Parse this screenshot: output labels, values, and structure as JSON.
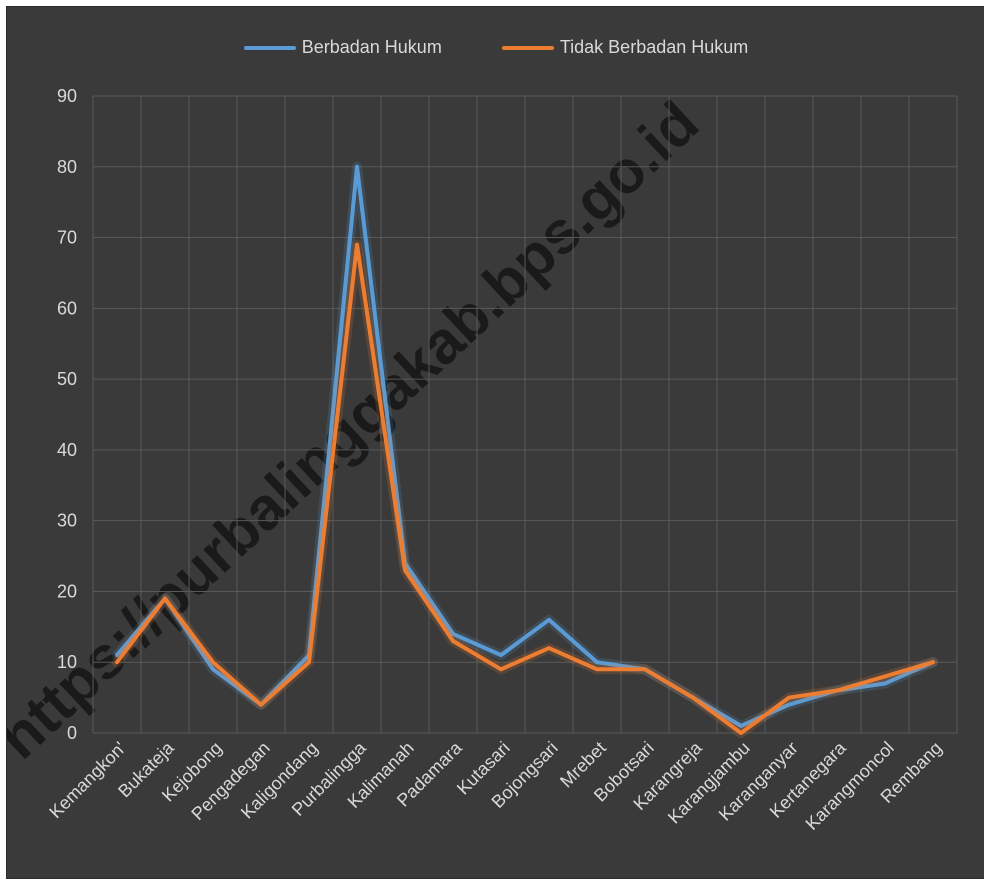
{
  "chart_data": {
    "type": "line",
    "title": "",
    "xlabel": "",
    "ylabel": "",
    "ylim": [
      0,
      90
    ],
    "yticks": [
      0,
      10,
      20,
      30,
      40,
      50,
      60,
      70,
      80,
      90
    ],
    "grid": true,
    "legend_position": "top-center",
    "categories": [
      "Kemangkon'",
      "Bukateja",
      "Kejobong",
      "Pengadegan",
      "Kaligondang",
      "Purbalingga",
      "Kalimanah",
      "Padamara",
      "Kutasari",
      "Bojongsari",
      "Mrebet",
      "Bobotsari",
      "Karangreja",
      "Karangjambu",
      "Karanganyar",
      "Kertanegara",
      "Karangmoncol",
      "Rembang"
    ],
    "series": [
      {
        "name": "Berbadan Hukum",
        "color": "#5b9bd5",
        "values": [
          11,
          19,
          9,
          4,
          11,
          80,
          24,
          14,
          11,
          16,
          10,
          9,
          5,
          1,
          4,
          6,
          7,
          10
        ]
      },
      {
        "name": "Tidak Berbadan Hukum",
        "color": "#ed7d31",
        "values": [
          10,
          19,
          10,
          4,
          10,
          69,
          23,
          13,
          9,
          12,
          9,
          9,
          5,
          0,
          5,
          6,
          8,
          10
        ]
      }
    ]
  },
  "watermark": "https://purbalinggakab.bps.go.id",
  "colors": {
    "background": "#3a3a3a",
    "grid": "#595959",
    "text": "#d9d9d9"
  }
}
